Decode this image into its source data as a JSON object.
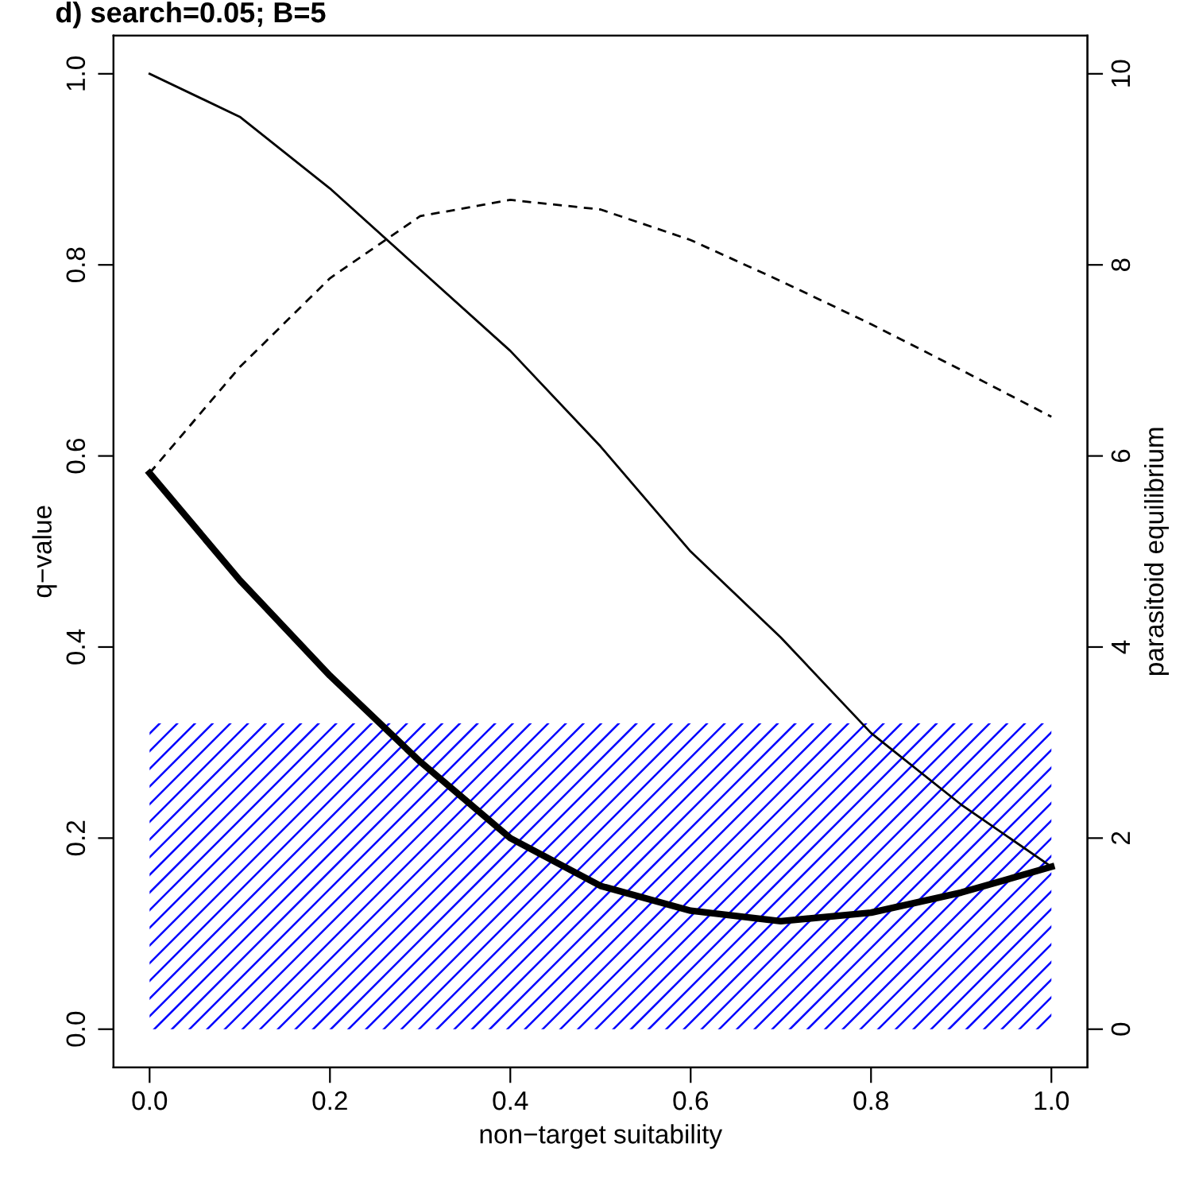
{
  "chart_data": {
    "type": "line",
    "title": "d) search=0.05; B=5",
    "xlabel": "non−target suitability",
    "ylabel": "q−value",
    "y2label": "parasitoid equilibrium",
    "x": [
      0,
      0.1,
      0.2,
      0.3,
      0.4,
      0.5,
      0.6,
      0.7,
      0.8,
      0.9,
      1.0
    ],
    "series": [
      {
        "color": "#000000",
        "line_style": "solid",
        "values": [
          1.0,
          0.955,
          0.88,
          0.795,
          0.71,
          0.61,
          0.5,
          0.41,
          0.31,
          0.235,
          0.17
        ]
      },
      {
        "color": "#000000",
        "line_style": "solid",
        "values": [
          0.582,
          0.47,
          0.37,
          0.28,
          0.2,
          0.15,
          0.124,
          0.113,
          0.122,
          0.143,
          0.17
        ]
      },
      {
        "color": "#000000",
        "line_style": "dashed",
        "axis": "y2",
        "values": [
          5.82,
          6.93,
          7.86,
          8.51,
          8.68,
          8.58,
          8.26,
          7.83,
          7.38,
          6.9,
          6.41
        ]
      }
    ],
    "bands": [
      {
        "axis": "y",
        "from": 0,
        "to": 0.32,
        "color": "#0000ff"
      }
    ],
    "xlim": [
      -0.04,
      1.04
    ],
    "xticks": [
      {
        "value": 0,
        "label": "0.0"
      },
      0.2,
      0.4,
      0.6,
      0.8,
      {
        "value": 1,
        "label": "1.0"
      }
    ],
    "ylim": [
      -0.04,
      1.04
    ],
    "yticks": [
      {
        "value": 0,
        "label": "0.0"
      },
      0.2,
      0.4,
      0.6,
      0.8,
      {
        "value": 1,
        "label": "1.0"
      }
    ],
    "y2lim": [
      -0.4,
      10.4
    ],
    "y2ticks": [
      0,
      2,
      4,
      6,
      8,
      10
    ],
    "grid": false,
    "legend": false
  }
}
